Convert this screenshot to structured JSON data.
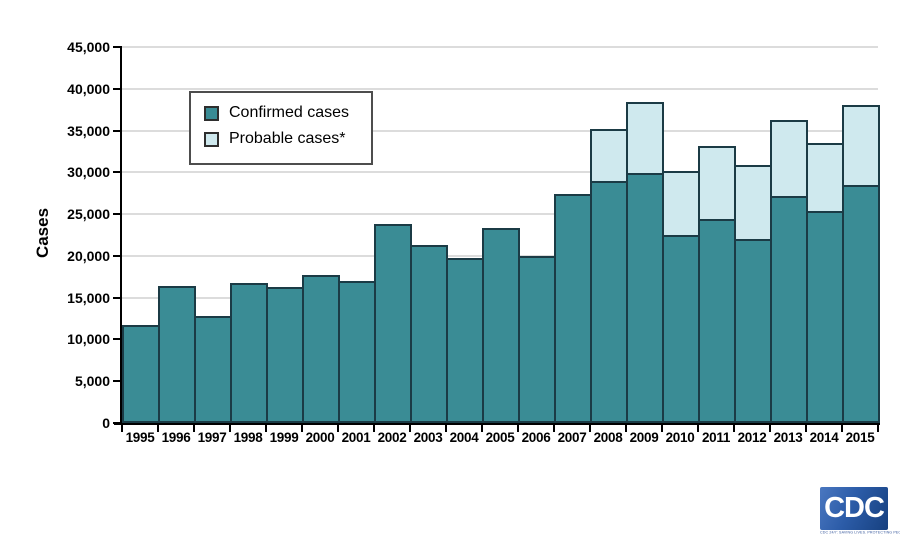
{
  "chart_data": {
    "type": "bar",
    "stacked": true,
    "title": "",
    "xlabel": "",
    "ylabel": "Cases",
    "ylim": [
      0,
      45000
    ],
    "ytick_interval": 5000,
    "ytick_labels": [
      "0",
      "5,000",
      "10,000",
      "15,000",
      "20,000",
      "25,000",
      "30,000",
      "35,000",
      "40,000",
      "45,000"
    ],
    "grid": true,
    "legend_position": "upper-left-inside",
    "categories": [
      "1995",
      "1996",
      "1997",
      "1998",
      "1999",
      "2000",
      "2001",
      "2002",
      "2003",
      "2004",
      "2005",
      "2006",
      "2007",
      "2008",
      "2009",
      "2010",
      "2011",
      "2012",
      "2013",
      "2014",
      "2015"
    ],
    "series": [
      {
        "name": "Confirmed cases",
        "color": "#3a8c95",
        "values": [
          11700,
          16455,
          12801,
          16801,
          16273,
          17730,
          17029,
          23763,
          21273,
          19804,
          23305,
          19931,
          27444,
          28921,
          29959,
          22561,
          24364,
          22014,
          27203,
          25359,
          28453
        ]
      },
      {
        "name": "Probable cases*",
        "color": "#cfe9ee",
        "values": [
          0,
          0,
          0,
          0,
          0,
          0,
          0,
          0,
          0,
          0,
          0,
          0,
          0,
          6277,
          8509,
          7597,
          8733,
          8817,
          9104,
          8150,
          9616
        ]
      }
    ],
    "bar_border_color": "#1b3b45",
    "gridline_color": "#dcdcdc",
    "axis_color": "#000000"
  },
  "footer": {
    "logo_text": "CDC",
    "logo_tagline": "CDC 24/7: Saving Lives. Protecting People.™"
  }
}
